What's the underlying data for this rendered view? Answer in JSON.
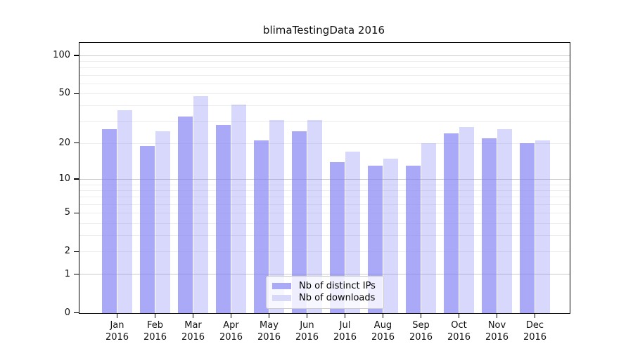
{
  "title": "blimaTestingData 2016",
  "colors": {
    "bar_base": "#8282f5",
    "ips_alpha": 0.69,
    "downloads_alpha": 0.31,
    "ips_bar_hex": "#a9a9f8",
    "downloads_bar_hex": "#d8d8f8",
    "axis": "#000000",
    "grid_major": "#c9c9c9",
    "grid_minor": "#ededed",
    "text": "#111111",
    "legend_border": "#cccccc"
  },
  "legend": {
    "items": [
      {
        "label": "Nb of distinct IPs",
        "color": "#a9a9f8"
      },
      {
        "label": "Nb of downloads",
        "color": "#d8d8f8"
      }
    ]
  },
  "y_axis": {
    "scale": "symlog",
    "labeled_ticks": [
      100,
      50,
      20,
      10,
      5,
      2,
      1,
      0
    ],
    "major_grid_values": [
      1,
      10,
      100
    ],
    "minor_grid_values": [
      2,
      3,
      4,
      6,
      7,
      8,
      9,
      5,
      20,
      30,
      40,
      50,
      60,
      70,
      80,
      90
    ],
    "max_value": 127
  },
  "x_axis": {
    "year": "2016",
    "months": [
      "Jan",
      "Feb",
      "Mar",
      "Apr",
      "May",
      "Jun",
      "Jul",
      "Aug",
      "Sep",
      "Oct",
      "Nov",
      "Dec"
    ]
  },
  "chart_data": {
    "type": "bar",
    "title": "blimaTestingData 2016",
    "categories": [
      "Jan 2016",
      "Feb 2016",
      "Mar 2016",
      "Apr 2016",
      "May 2016",
      "Jun 2016",
      "Jul 2016",
      "Aug 2016",
      "Sep 2016",
      "Oct 2016",
      "Nov 2016",
      "Dec 2016"
    ],
    "series": [
      {
        "name": "Nb of distinct IPs",
        "values": [
          26,
          19,
          33,
          28,
          21,
          25,
          14,
          13,
          13,
          24,
          22,
          20
        ]
      },
      {
        "name": "Nb of downloads",
        "values": [
          37,
          25,
          48,
          41,
          31,
          31,
          17,
          15,
          20,
          27,
          26,
          21
        ]
      }
    ],
    "xlabel": "",
    "ylabel": "",
    "ylim": [
      0,
      127
    ],
    "yscale": "symlog (position = log10(1+v))",
    "ytick_labels": [
      "0",
      "1",
      "2",
      "5",
      "10",
      "20",
      "50",
      "100"
    ],
    "grid": true,
    "legend_position": "lower center"
  }
}
